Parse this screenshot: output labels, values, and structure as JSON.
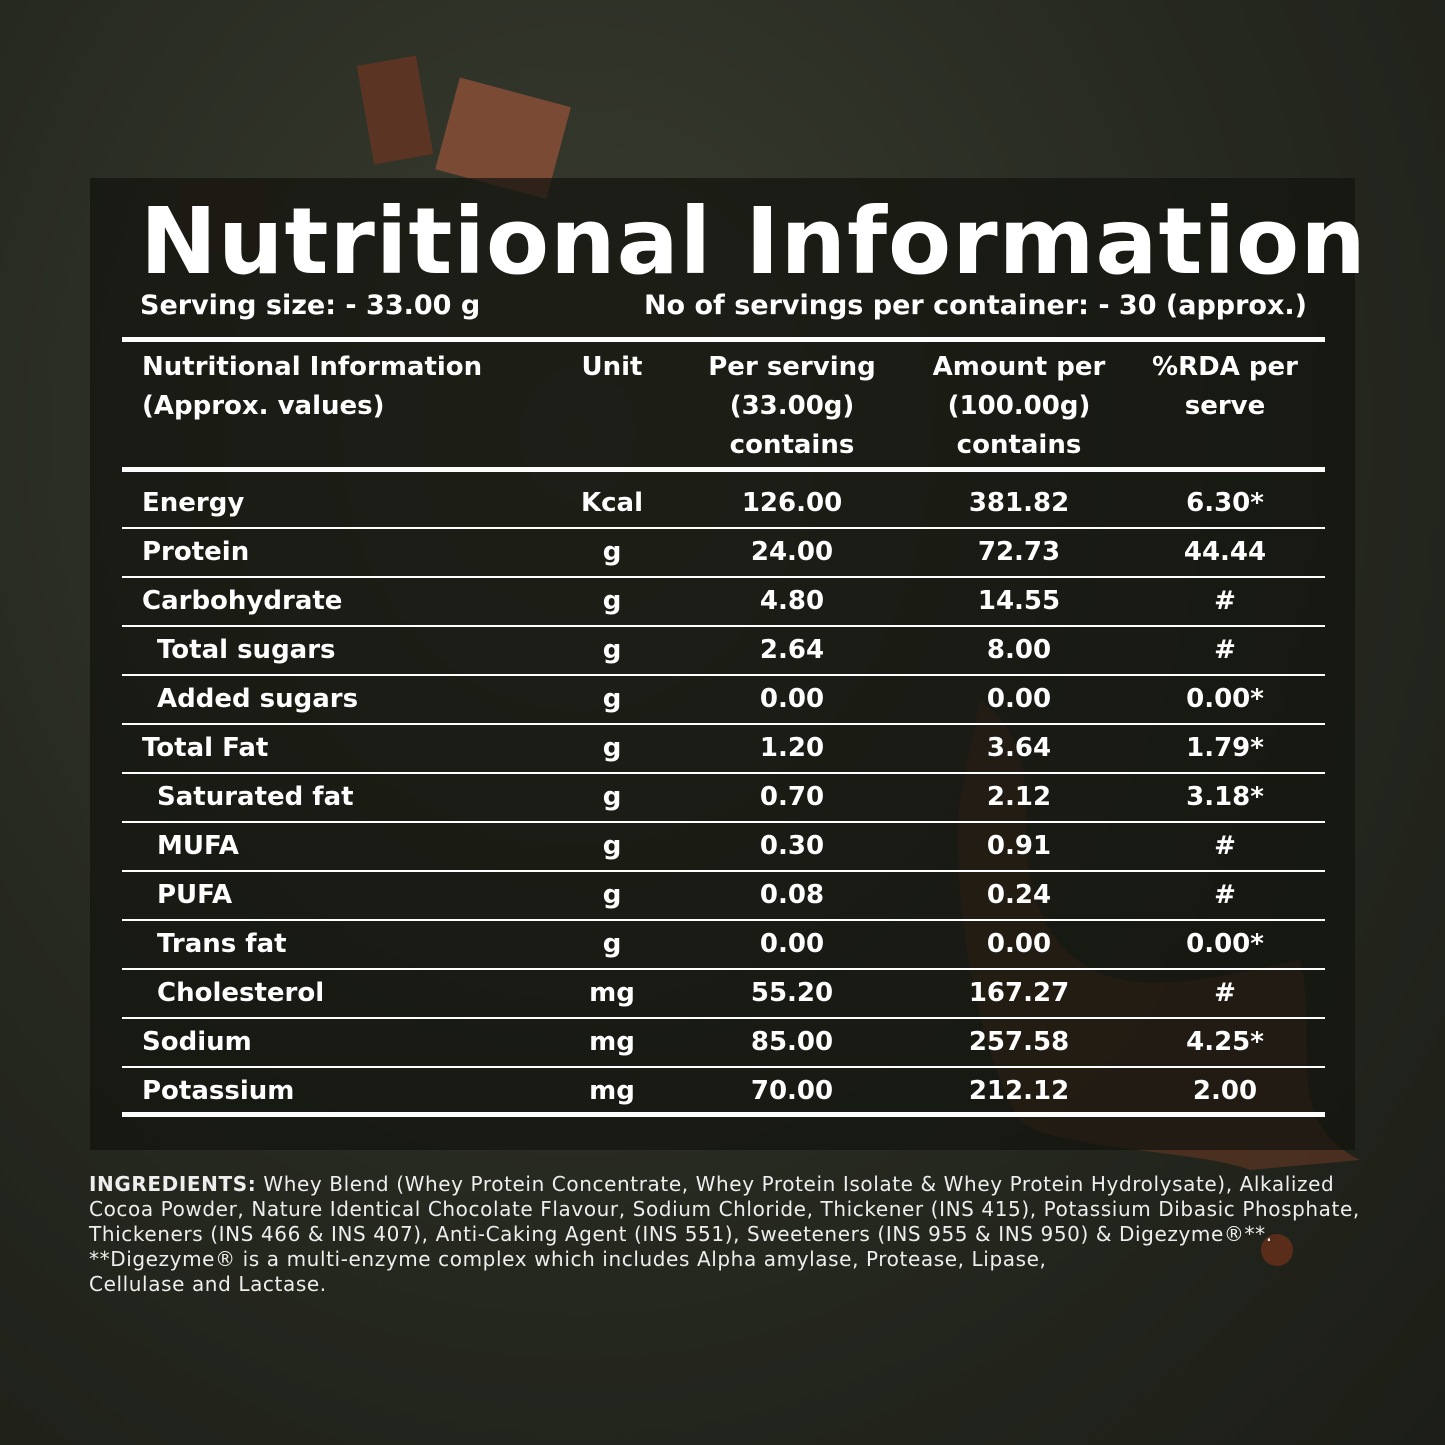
{
  "title": "Nutritional Information",
  "serving_size": "Serving size: - 33.00 g",
  "servings": "No of servings per container: - 30 (approx.)",
  "table": {
    "header": [
      [
        "Nutritional Information",
        "(Approx. values)"
      ],
      [
        "Unit"
      ],
      [
        "Per serving",
        "(33.00g)",
        "contains"
      ],
      [
        "Amount per",
        "(100.00g)",
        "contains"
      ],
      [
        "%RDA per",
        "serve"
      ]
    ],
    "rows": [
      {
        "cells": [
          "Energy",
          "Kcal",
          "126.00",
          "381.82",
          "6.30*"
        ]
      },
      {
        "cells": [
          "Protein",
          "g",
          "24.00",
          "72.73",
          "44.44"
        ]
      },
      {
        "cells": [
          "Carbohydrate",
          "g",
          "4.80",
          "14.55",
          "#"
        ],
        "children": [
          {
            "cells": [
              "Total sugars",
              "g",
              "2.64",
              "8.00",
              "#"
            ]
          },
          {
            "cells": [
              "Added sugars",
              "g",
              "0.00",
              "0.00",
              "0.00*"
            ]
          }
        ]
      },
      {
        "cells": [
          "Total Fat",
          "g",
          "1.20",
          "3.64",
          "1.79*"
        ],
        "children": [
          {
            "cells": [
              "Saturated fat",
              "g",
              "0.70",
              "2.12",
              "3.18*"
            ]
          },
          {
            "cells": [
              "MUFA",
              "g",
              "0.30",
              "0.91",
              "#"
            ]
          },
          {
            "cells": [
              "PUFA",
              "g",
              "0.08",
              "0.24",
              "#"
            ]
          },
          {
            "cells": [
              "Trans fat",
              "g",
              "0.00",
              "0.00",
              "0.00*"
            ]
          },
          {
            "cells": [
              "Cholesterol",
              "mg",
              "55.20",
              "167.27",
              "#"
            ]
          }
        ]
      },
      {
        "cells": [
          "Sodium",
          "mg",
          "85.00",
          "257.58",
          "4.25*"
        ]
      },
      {
        "cells": [
          "Potassium",
          "mg",
          "70.00",
          "212.12",
          "2.00"
        ]
      }
    ]
  },
  "ingredients": {
    "label": "INGREDIENTS:",
    "text": "Whey Blend (Whey Protein Concentrate, Whey Protein Isolate & Whey Protein Hydrolysate), Alkalized Cocoa Powder, Nature Identical Chocolate Flavour, Sodium Chloride, Thickener (INS 415), Potassium Dibasic Phosphate, Thickeners (INS 466 & INS 407), Anti-Caking Agent (INS 551), Sweeteners (INS 955 & INS 950) & Digezyme®**.",
    "note": "**Digezyme® is a multi-enzyme complex which includes Alpha amylase, Protease, Lipase, Cellulase and Lactase."
  }
}
